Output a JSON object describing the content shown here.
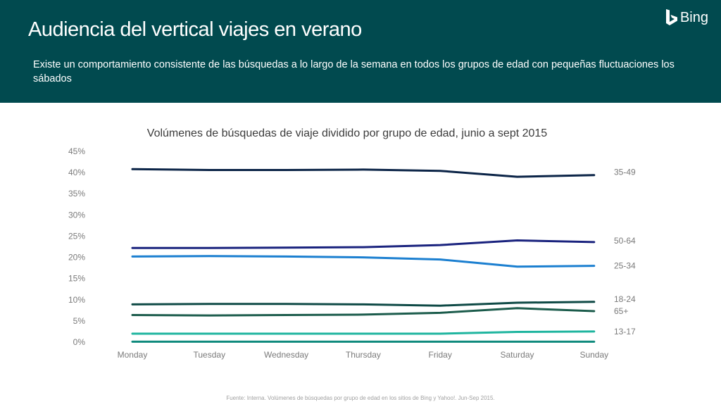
{
  "header": {
    "title": "Audiencia del vertical viajes en verano",
    "subtitle": "Existe un comportamiento consistente de las búsquedas a lo largo de la semana en todos los grupos de edad con pequeñas fluctuaciones los sábados",
    "brand": "Bing",
    "brand_icon": "bing-logo-icon",
    "background_color": "#014a4f"
  },
  "chart_data": {
    "type": "line",
    "title": "Volúmenes de búsquedas de viaje dividido por grupo de edad, junio a sept 2015",
    "xlabel": "",
    "ylabel": "",
    "categories": [
      "Monday",
      "Tuesday",
      "Wednesday",
      "Thursday",
      "Friday",
      "Saturday",
      "Sunday"
    ],
    "ylim": [
      0,
      45
    ],
    "yticks": [
      "0%",
      "5%",
      "10%",
      "15%",
      "20%",
      "25%",
      "30%",
      "35%",
      "40%",
      "45%"
    ],
    "grid": false,
    "legend": "series labels at right end of lines",
    "series": [
      {
        "name": "35-49",
        "color": "#0b2447",
        "values": [
          40.8,
          40.6,
          40.6,
          40.7,
          40.4,
          39.0,
          39.4
        ]
      },
      {
        "name": "50-64",
        "color": "#1a237e",
        "values": [
          22.2,
          22.2,
          22.3,
          22.4,
          22.9,
          24.0,
          23.6
        ]
      },
      {
        "name": "25-34",
        "color": "#1b7fd0",
        "values": [
          20.2,
          20.3,
          20.2,
          20.0,
          19.5,
          17.8,
          18.0
        ]
      },
      {
        "name": "18-24",
        "color": "#0f4a46",
        "values": [
          8.9,
          9.0,
          9.0,
          8.9,
          8.6,
          9.3,
          9.5
        ]
      },
      {
        "name": "65+",
        "color": "#1c5c4c",
        "values": [
          6.4,
          6.3,
          6.4,
          6.5,
          6.9,
          8.0,
          7.3
        ]
      },
      {
        "name": "13-17",
        "color": "#1fb59f",
        "values": [
          2.0,
          2.0,
          2.0,
          2.0,
          2.0,
          2.4,
          2.5
        ]
      },
      {
        "name": "",
        "color": "#0e8a7d",
        "values": [
          0.1,
          0.1,
          0.1,
          0.1,
          0.1,
          0.1,
          0.1
        ]
      }
    ]
  },
  "footnote": "Fuente: Interna. Volúmenes de búsquedas por grupo de edad en los sitios de Bing y Yahoo!. Jun-Sep 2015."
}
